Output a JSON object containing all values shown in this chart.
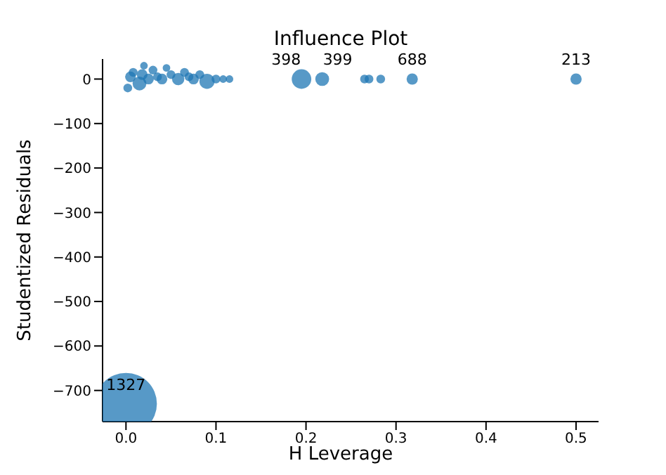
{
  "chart_data": {
    "type": "bubble",
    "title": "Influence Plot",
    "xlabel": "H Leverage",
    "ylabel": "Studentized Residuals",
    "x": [
      0.0,
      0.002,
      0.005,
      0.008,
      0.015,
      0.018,
      0.02,
      0.025,
      0.03,
      0.035,
      0.04,
      0.045,
      0.05,
      0.058,
      0.065,
      0.07,
      0.075,
      0.082,
      0.09,
      0.1,
      0.108,
      0.115,
      0.195,
      0.218,
      0.265,
      0.27,
      0.283,
      0.318,
      0.5
    ],
    "values": [
      -730,
      -20,
      5,
      15,
      -10,
      10,
      30,
      0,
      20,
      5,
      0,
      25,
      10,
      0,
      15,
      5,
      0,
      10,
      -5,
      0,
      0,
      0,
      0,
      0,
      0,
      0,
      0,
      0,
      0
    ],
    "sizes": [
      1,
      0.02,
      0.03,
      0.02,
      0.05,
      0.03,
      0.015,
      0.03,
      0.02,
      0.02,
      0.03,
      0.015,
      0.02,
      0.04,
      0.02,
      0.02,
      0.03,
      0.02,
      0.06,
      0.02,
      0.015,
      0.015,
      0.1,
      0.05,
      0.02,
      0.02,
      0.02,
      0.033,
      0.033
    ],
    "color": "#1f77b4",
    "xlim": [
      -0.026,
      0.525
    ],
    "ylim": [
      -770,
      45
    ],
    "xticks": [
      {
        "value": 0,
        "label": "0.0"
      },
      {
        "value": 0.1,
        "label": "0.1"
      },
      {
        "value": 0.2,
        "label": "0.2"
      },
      {
        "value": 0.3,
        "label": "0.3"
      },
      {
        "value": 0.4,
        "label": "0.4"
      },
      {
        "value": 0.5,
        "label": "0.5"
      }
    ],
    "yticks": [
      -700,
      -600,
      -500,
      -400,
      -300,
      -200,
      -100,
      0
    ],
    "annotations": [
      {
        "text": "1327",
        "x": 0.0,
        "y": -730
      },
      {
        "text": "398",
        "x": 0.195,
        "y": 0
      },
      {
        "text": "399",
        "x": 0.218,
        "y": 0
      },
      {
        "text": "688",
        "x": 0.318,
        "y": 0
      },
      {
        "text": "213",
        "x": 0.5,
        "y": 0
      }
    ]
  }
}
